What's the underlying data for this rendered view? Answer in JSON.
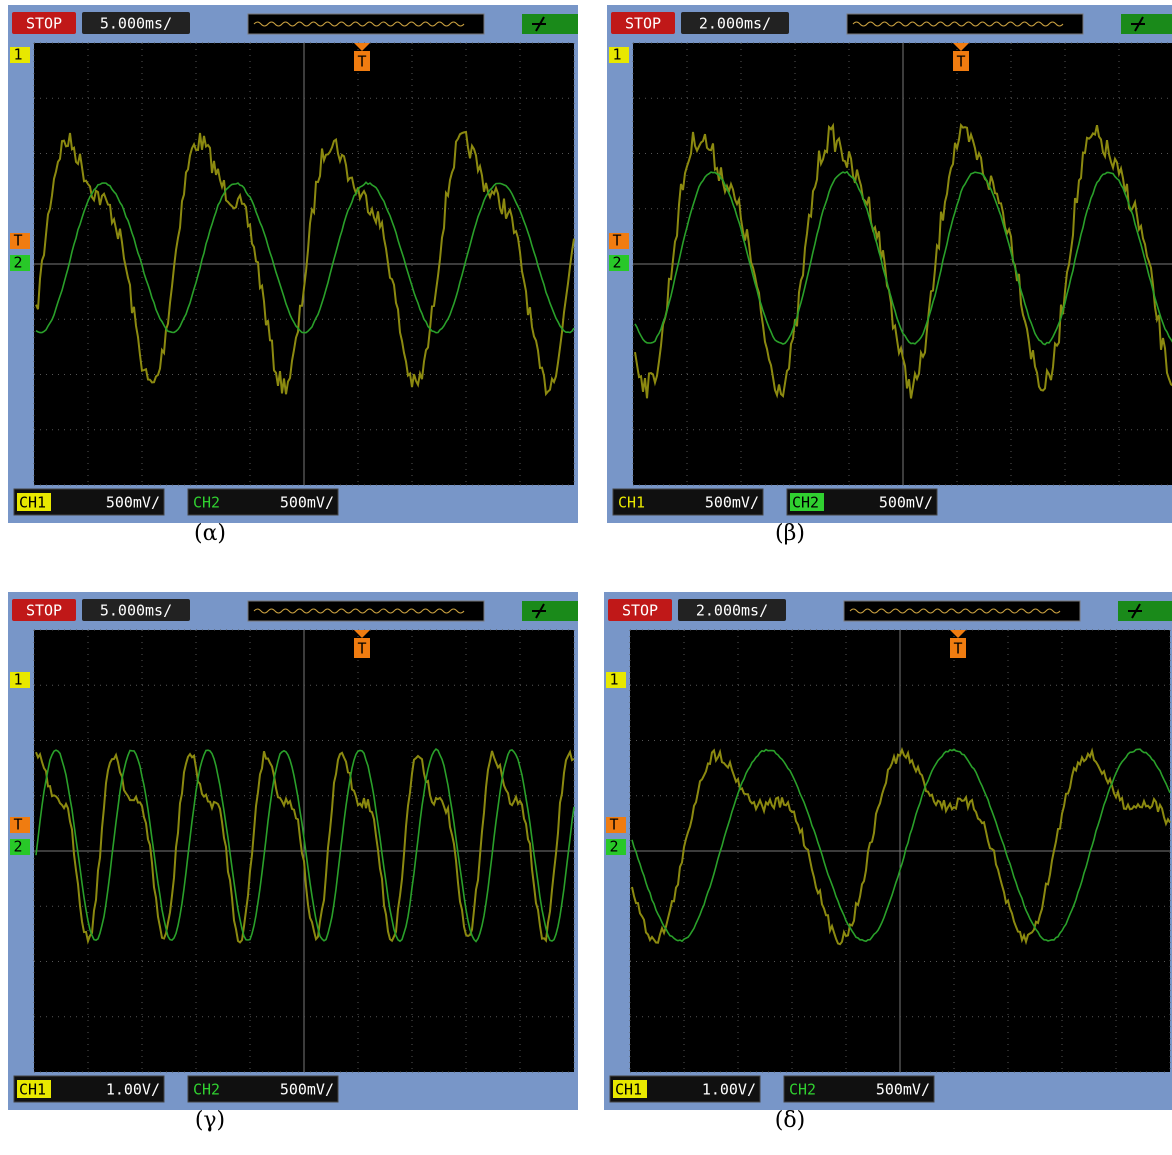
{
  "panels": [
    {
      "status": "STOP",
      "timebase": "5.000ms/",
      "trigger": "T",
      "ch1_marker": "1",
      "ch2_marker": "2",
      "ch1_label": "CH1",
      "ch1_scale": "500mV/",
      "ch2_label": "CH2",
      "ch2_scale": "500mV/",
      "caption": "(α)"
    },
    {
      "status": "STOP",
      "timebase": "2.000ms/",
      "trigger": "T",
      "ch1_marker": "1",
      "ch2_marker": "2",
      "ch1_label": "CH1",
      "ch1_scale": "500mV/",
      "ch2_label": "CH2",
      "ch2_scale": "500mV/",
      "caption": "(β)"
    },
    {
      "status": "STOP",
      "timebase": "5.000ms/",
      "trigger": "T",
      "ch1_marker": "1",
      "ch2_marker": "2",
      "ch1_label": "CH1",
      "ch1_scale": "1.00V/",
      "ch2_label": "CH2",
      "ch2_scale": "500mV/",
      "caption": "(γ)"
    },
    {
      "status": "STOP",
      "timebase": "2.000ms/",
      "trigger": "T",
      "ch1_marker": "1",
      "ch2_marker": "2",
      "ch1_label": "CH1",
      "ch1_scale": "1.00V/",
      "ch2_label": "CH2",
      "ch2_scale": "500mV/",
      "caption": "(δ)"
    }
  ]
}
